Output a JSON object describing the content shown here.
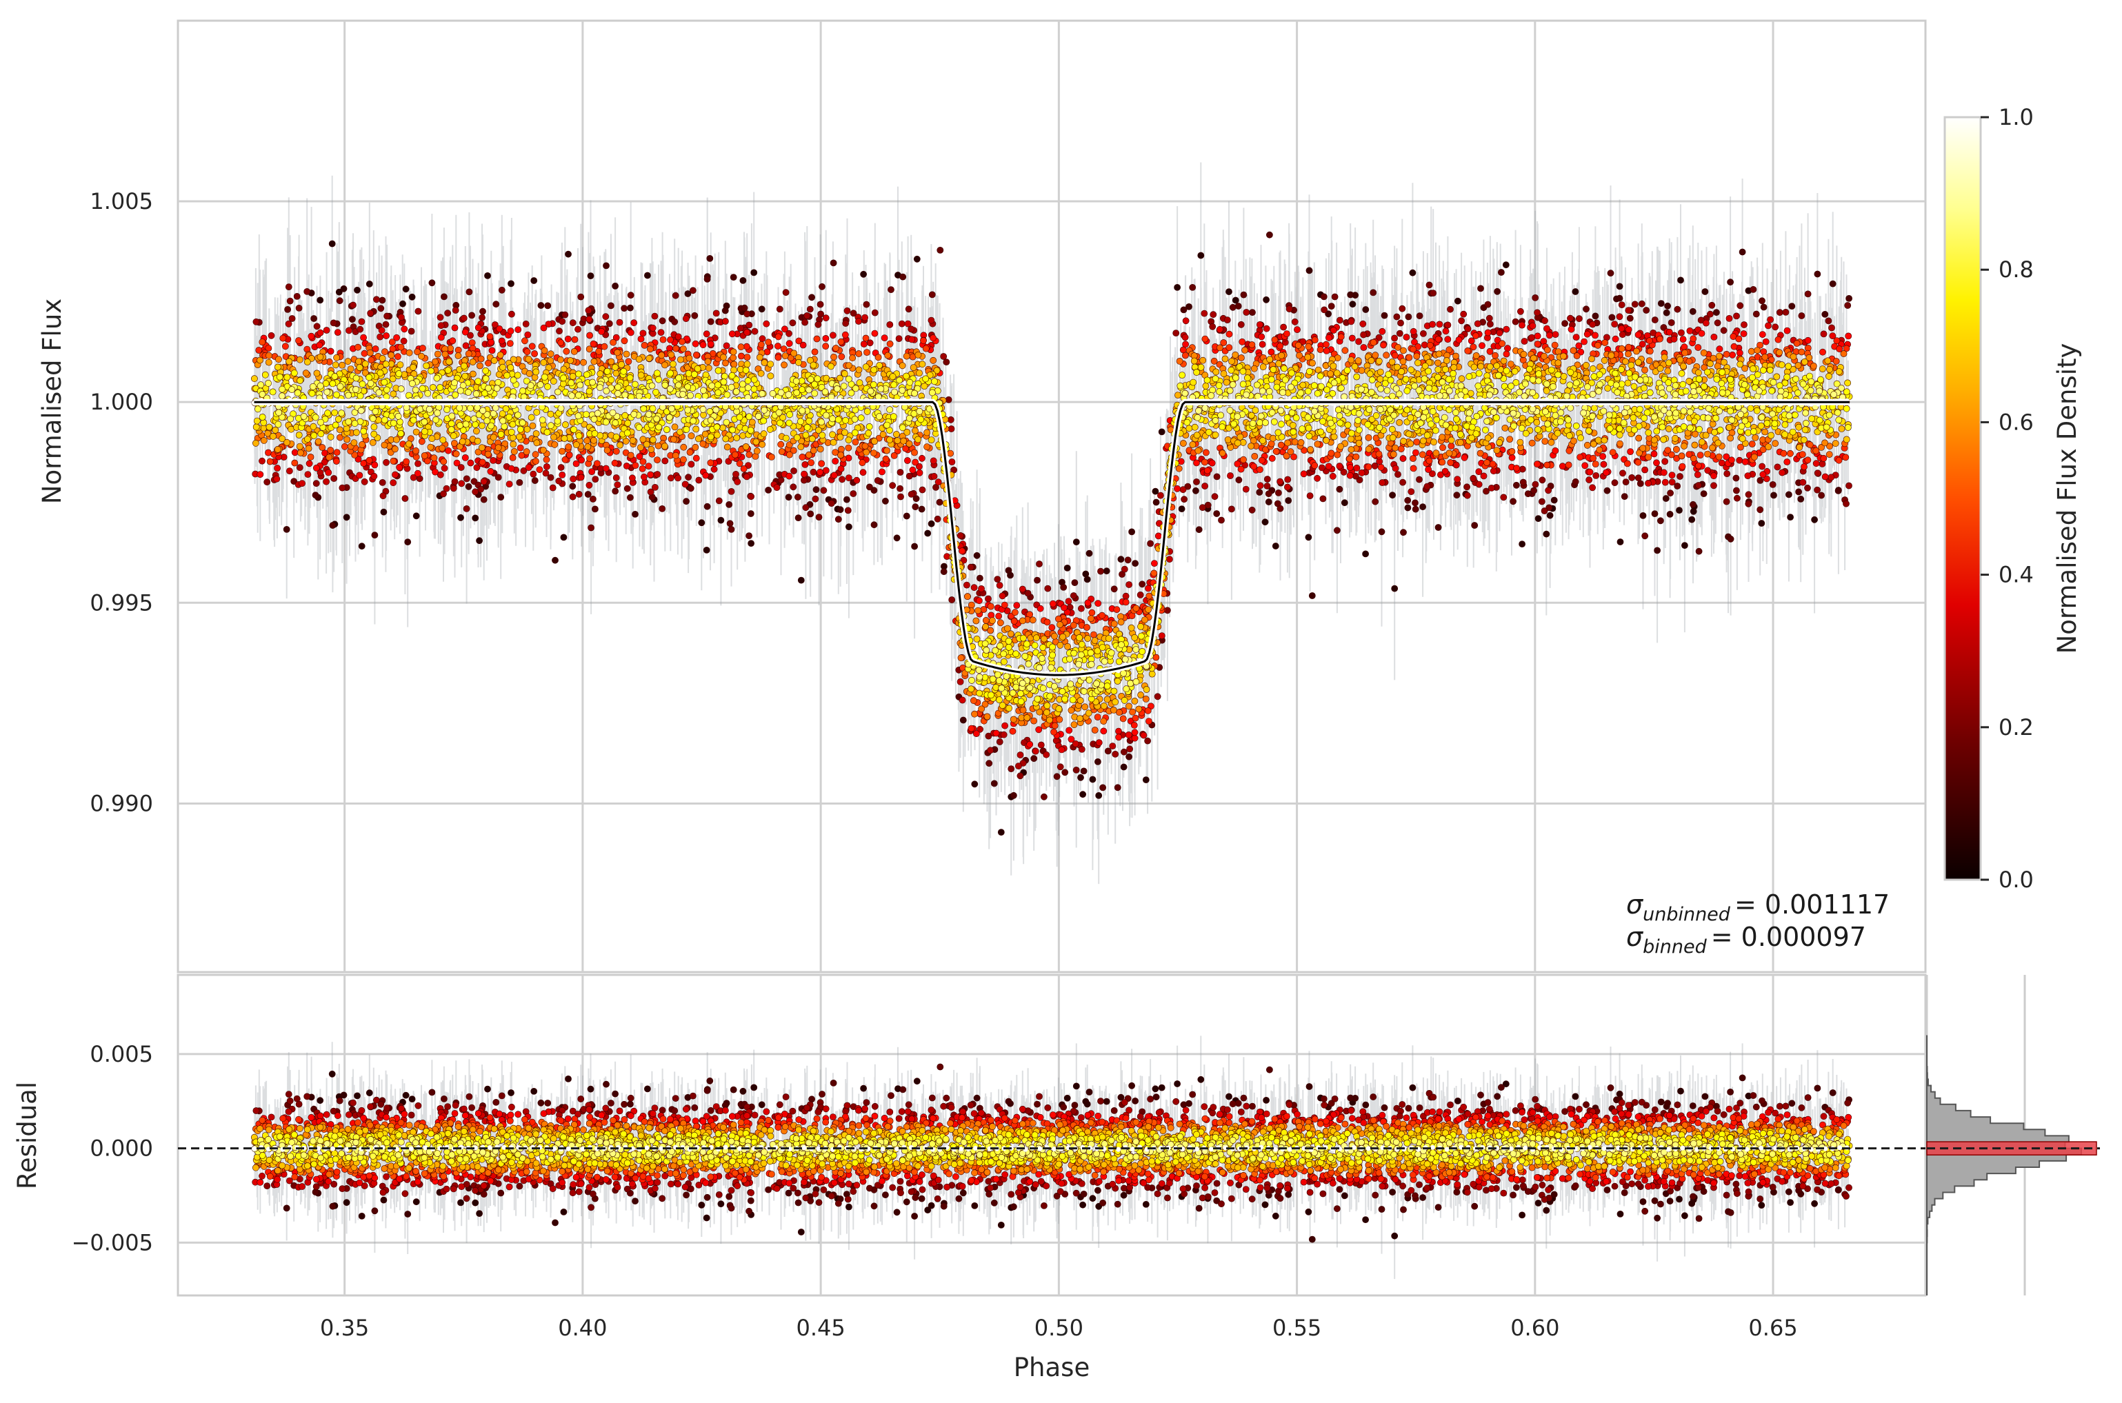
{
  "chart_data": [
    {
      "panel": "main",
      "type": "scatter",
      "xlabel": "Phase",
      "ylabel": "Normalised Flux",
      "xlim": [
        0.315,
        0.682
      ],
      "ylim": [
        0.9858,
        1.0095
      ],
      "xticks": [
        "0.35",
        "0.40",
        "0.45",
        "0.50",
        "0.55",
        "0.60",
        "0.65"
      ],
      "xtick_values": [
        0.35,
        0.4,
        0.45,
        0.5,
        0.55,
        0.6,
        0.65
      ],
      "yticks": [
        "0.990",
        "0.995",
        "1.000",
        "1.005"
      ],
      "ytick_values": [
        0.99,
        0.995,
        1.0,
        1.005
      ],
      "grid": true,
      "data_range": [
        0.331,
        0.666
      ],
      "model": {
        "baseline": 1.0,
        "depth": 0.0068,
        "ingress_start": 0.4735,
        "flat_start": 0.482,
        "flat_end": 0.518,
        "egress_end": 0.5265,
        "line_color": "#000000",
        "halo_color": "#ffffff"
      },
      "scatter_sigma": 0.00115,
      "colormap": "hot",
      "error_bar_color": "#9aa0a6",
      "annotations": [
        {
          "symbol": "σ",
          "subscript": "unbinned",
          "value": "= 0.001117"
        },
        {
          "symbol": "σ",
          "subscript": "binned",
          "value": "= 0.000097"
        }
      ]
    },
    {
      "panel": "residual",
      "type": "scatter",
      "ylabel": "Residual",
      "xlabel": "Phase",
      "ylim": [
        -0.0078,
        0.0092
      ],
      "yticks": [
        "0.005",
        "0.000",
        "−0.005"
      ],
      "ytick_values": [
        0.005,
        0.0,
        -0.005
      ],
      "zero_line": "dashed",
      "scatter_sigma": 0.00115
    },
    {
      "panel": "residual-histogram",
      "type": "histogram",
      "orientation": "horizontal",
      "fill_color": "#a9a9a9",
      "binned_color": "#e8434a"
    }
  ],
  "colorbar": {
    "label": "Normalised Flux Density",
    "ticks": [
      "0.0",
      "0.2",
      "0.4",
      "0.6",
      "0.8",
      "1.0"
    ],
    "tick_values": [
      0.0,
      0.2,
      0.4,
      0.6,
      0.8,
      1.0
    ],
    "colormap": "hot"
  }
}
